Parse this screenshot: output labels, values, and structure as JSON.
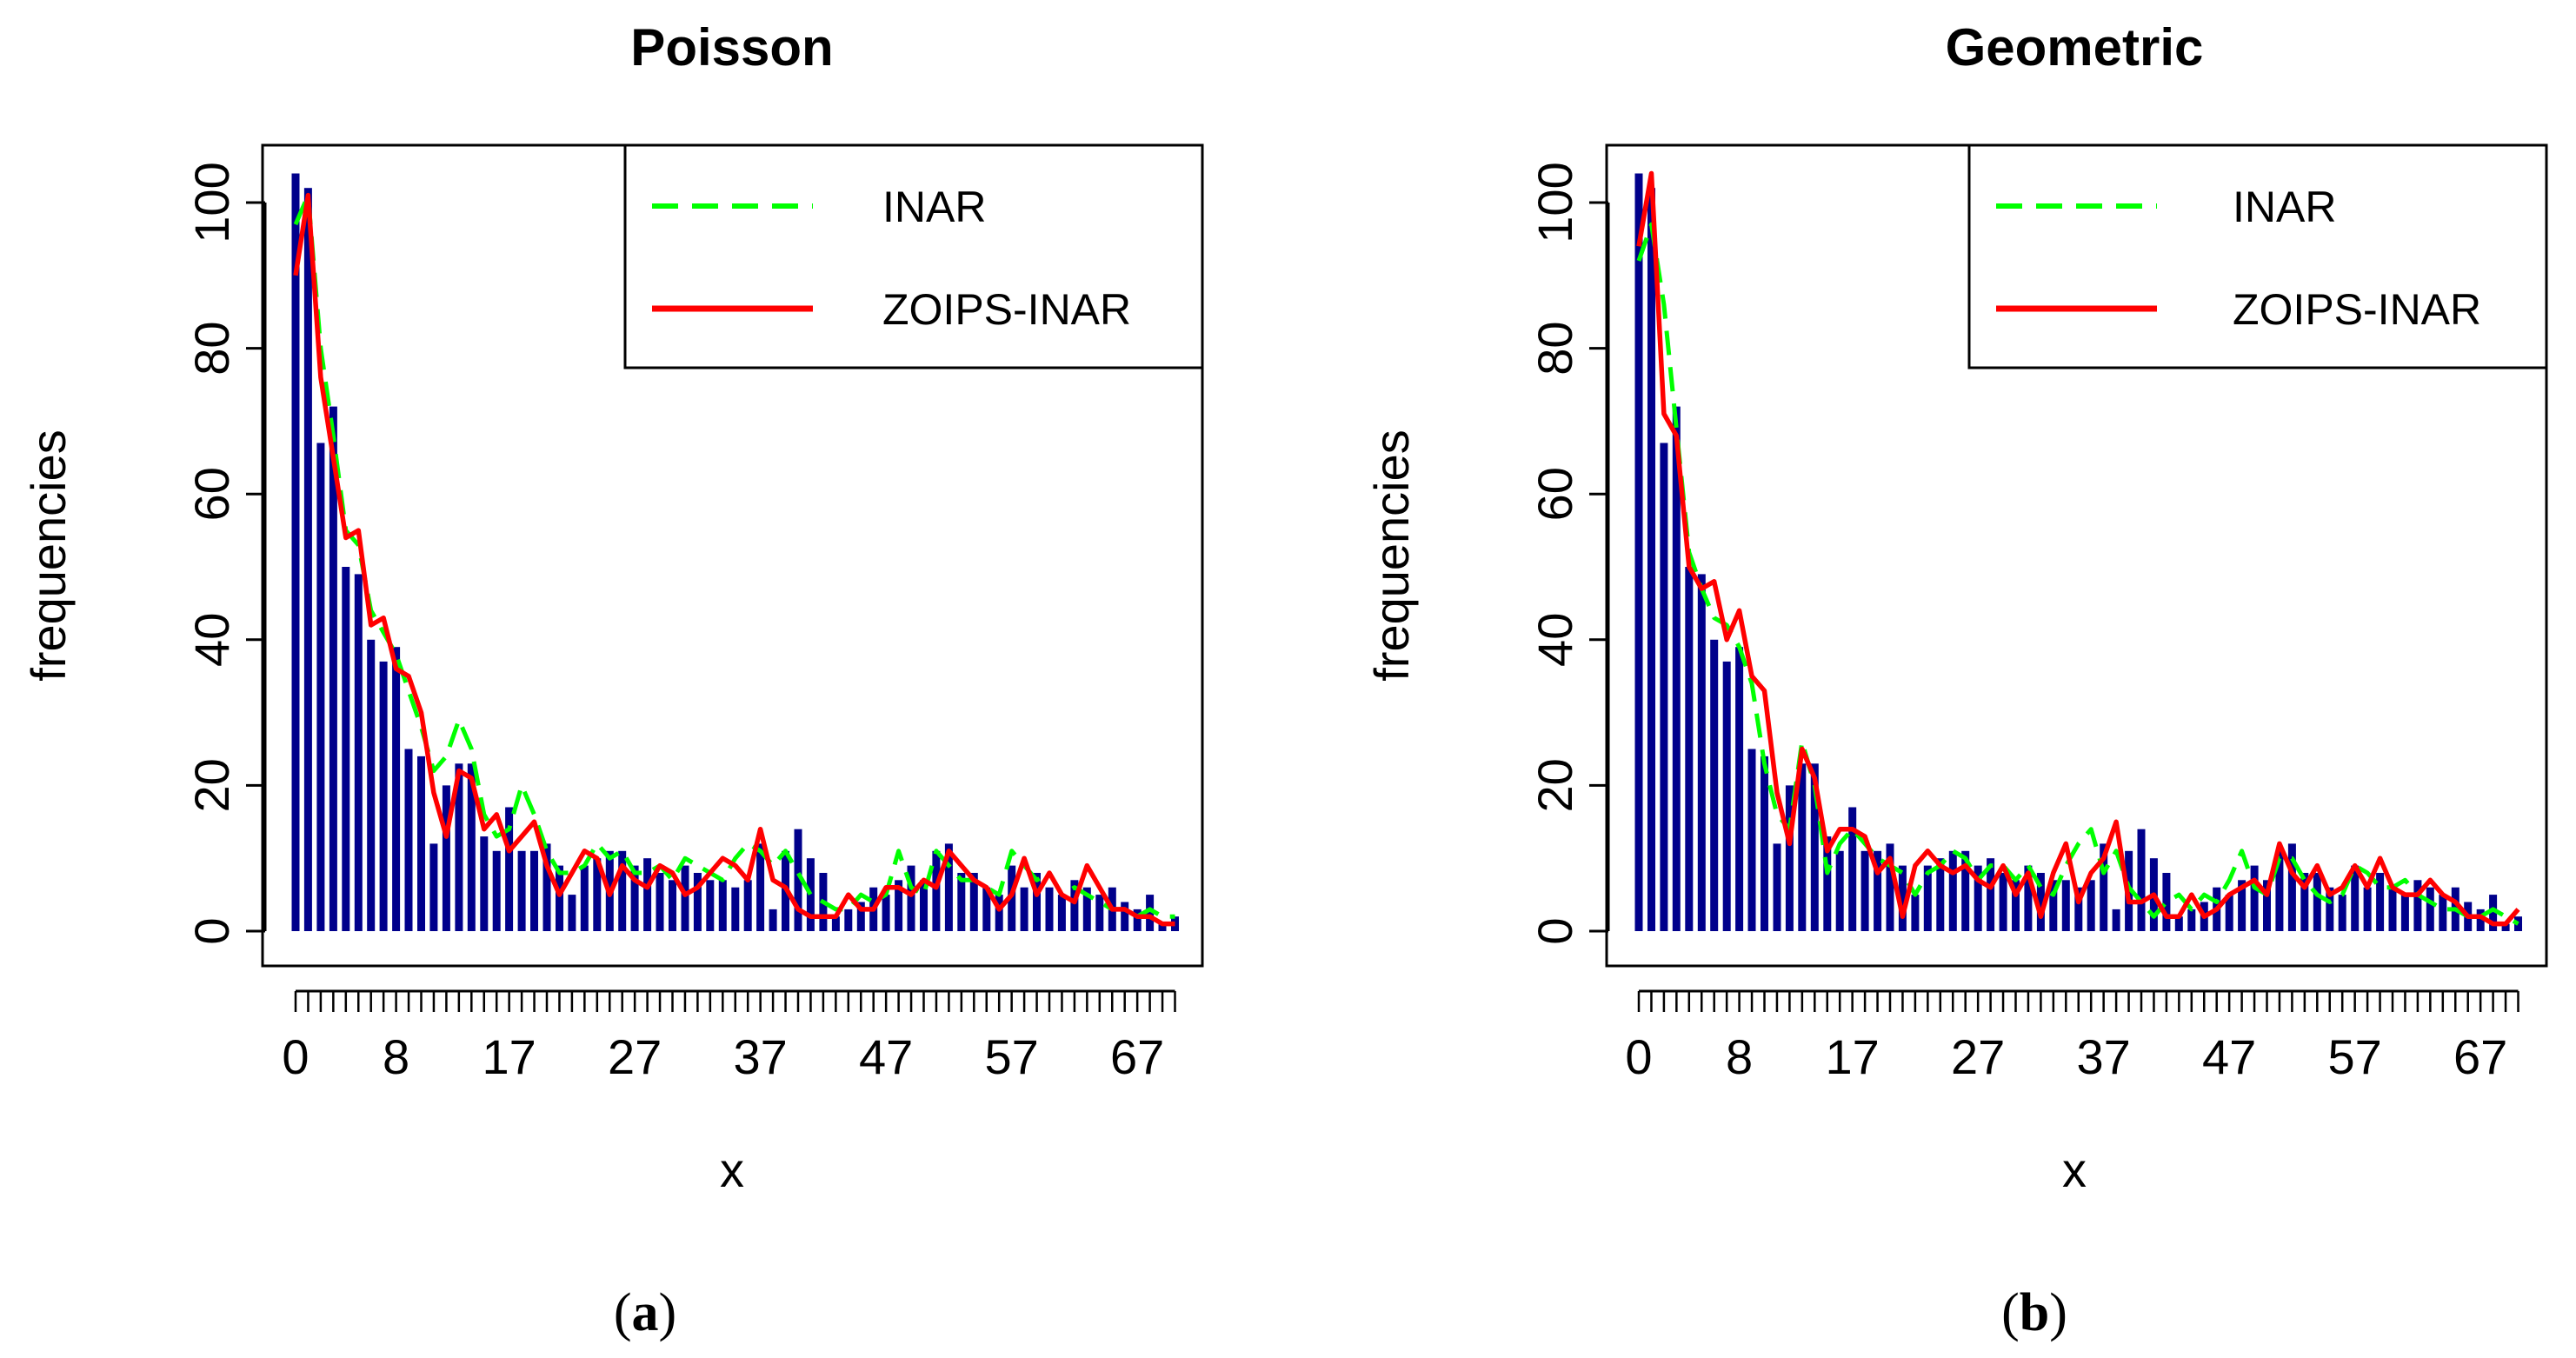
{
  "colors": {
    "bar": "#00008B",
    "inar": "#00FF00",
    "zoips": "#FF0000",
    "axis": "#000000"
  },
  "chart_data": [
    {
      "type": "bar",
      "title": "Poisson",
      "xlabel": "x",
      "ylabel": "frequencies",
      "ylim": [
        0,
        100
      ],
      "xlim": [
        0,
        69
      ],
      "yticks": [
        0,
        20,
        40,
        60,
        80,
        100
      ],
      "xtick_labels": [
        0,
        8,
        17,
        27,
        37,
        47,
        57,
        67
      ],
      "caption": {
        "open": "(",
        "letter": "a",
        "close": ")"
      },
      "legend": {
        "position": "top-right",
        "entries": [
          {
            "label": "INAR",
            "color": "#00FF00",
            "style": "dashed"
          },
          {
            "label": "ZOIPS-INAR",
            "color": "#FF0000",
            "style": "solid"
          }
        ]
      },
      "bars": [
        104,
        102,
        67,
        72,
        50,
        49,
        40,
        37,
        39,
        25,
        24,
        12,
        20,
        23,
        23,
        13,
        11,
        17,
        11,
        11,
        12,
        9,
        5,
        9,
        10,
        11,
        11,
        9,
        10,
        8,
        7,
        9,
        8,
        7,
        7,
        6,
        7,
        12,
        3,
        11,
        14,
        10,
        8,
        2,
        3,
        4,
        6,
        5,
        7,
        9,
        7,
        11,
        12,
        8,
        8,
        6,
        5,
        9,
        6,
        8,
        6,
        5,
        7,
        6,
        5,
        6,
        4,
        3,
        5,
        1,
        2
      ],
      "series": [
        {
          "name": "INAR",
          "values": [
            97,
            101,
            80,
            68,
            55,
            53,
            44,
            41,
            38,
            33,
            28,
            22,
            24,
            29,
            25,
            16,
            13,
            14,
            20,
            16,
            11,
            8,
            8,
            9,
            12,
            10,
            11,
            8,
            8,
            9,
            7,
            10,
            9,
            8,
            7,
            10,
            12,
            11,
            9,
            11,
            8,
            5,
            4,
            3,
            3,
            5,
            4,
            5,
            11,
            6,
            5,
            11,
            9,
            7,
            7,
            6,
            5,
            11,
            9,
            7,
            8,
            5,
            6,
            5,
            4,
            3,
            3,
            2,
            3,
            2,
            2
          ]
        },
        {
          "name": "ZOIPS-INAR",
          "values": [
            90,
            101,
            76,
            65,
            54,
            55,
            42,
            43,
            36,
            35,
            30,
            19,
            13,
            22,
            21,
            14,
            16,
            11,
            13,
            15,
            9,
            5,
            8,
            11,
            10,
            5,
            9,
            7,
            6,
            9,
            8,
            5,
            6,
            8,
            10,
            9,
            7,
            14,
            7,
            6,
            3,
            2,
            2,
            2,
            5,
            3,
            3,
            6,
            6,
            5,
            7,
            6,
            11,
            9,
            7,
            6,
            3,
            5,
            10,
            5,
            8,
            5,
            4,
            9,
            6,
            3,
            3,
            2,
            2,
            1,
            1
          ]
        }
      ]
    },
    {
      "type": "bar",
      "title": "Geometric",
      "xlabel": "x",
      "ylabel": "frequencies",
      "ylim": [
        0,
        100
      ],
      "xlim": [
        0,
        69
      ],
      "yticks": [
        0,
        20,
        40,
        60,
        80,
        100
      ],
      "xtick_labels": [
        0,
        8,
        17,
        27,
        37,
        47,
        57,
        67
      ],
      "caption": {
        "open": "(",
        "letter": "b",
        "close": ")"
      },
      "legend": {
        "position": "top-right",
        "entries": [
          {
            "label": "INAR",
            "color": "#00FF00",
            "style": "dashed"
          },
          {
            "label": "ZOIPS-INAR",
            "color": "#FF0000",
            "style": "solid"
          }
        ]
      },
      "bars": [
        104,
        102,
        67,
        72,
        50,
        49,
        40,
        37,
        39,
        25,
        24,
        12,
        20,
        23,
        23,
        13,
        11,
        17,
        11,
        11,
        12,
        9,
        5,
        9,
        10,
        11,
        11,
        9,
        10,
        8,
        7,
        9,
        8,
        7,
        7,
        6,
        7,
        12,
        3,
        11,
        14,
        10,
        8,
        2,
        3,
        4,
        6,
        5,
        7,
        9,
        7,
        11,
        12,
        8,
        8,
        6,
        5,
        9,
        6,
        8,
        6,
        5,
        7,
        6,
        5,
        6,
        4,
        3,
        5,
        1,
        2
      ],
      "series": [
        {
          "name": "INAR",
          "values": [
            92,
            97,
            86,
            69,
            52,
            47,
            43,
            42,
            39,
            34,
            23,
            16,
            14,
            26,
            20,
            8,
            12,
            14,
            12,
            10,
            9,
            8,
            5,
            8,
            9,
            11,
            10,
            7,
            9,
            9,
            7,
            9,
            6,
            5,
            9,
            12,
            14,
            8,
            11,
            6,
            4,
            2,
            4,
            5,
            3,
            5,
            4,
            7,
            11,
            6,
            5,
            10,
            10,
            7,
            5,
            4,
            5,
            9,
            8,
            6,
            6,
            7,
            5,
            4,
            3,
            3,
            2,
            2,
            3,
            2,
            1
          ]
        },
        {
          "name": "ZOIPS-INAR",
          "values": [
            94,
            104,
            71,
            68,
            50,
            47,
            48,
            40,
            44,
            35,
            33,
            19,
            12,
            25,
            21,
            11,
            14,
            14,
            13,
            8,
            10,
            2,
            9,
            11,
            9,
            8,
            9,
            7,
            6,
            9,
            5,
            8,
            2,
            8,
            12,
            4,
            8,
            10,
            15,
            4,
            4,
            5,
            2,
            2,
            5,
            2,
            3,
            5,
            6,
            7,
            5,
            12,
            8,
            6,
            9,
            5,
            6,
            9,
            6,
            10,
            6,
            5,
            5,
            7,
            5,
            4,
            2,
            2,
            1,
            1,
            3
          ]
        }
      ]
    }
  ]
}
